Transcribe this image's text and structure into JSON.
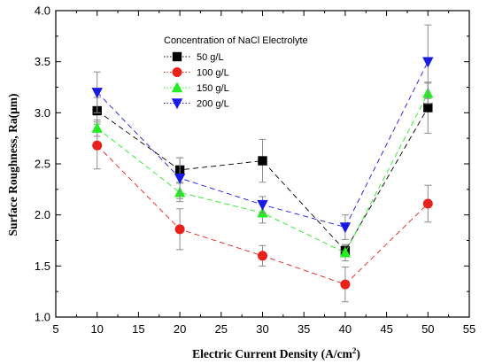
{
  "chart_data": {
    "type": "line",
    "title": "",
    "xlabel": "Electric Current Density (A/cm",
    "xlabel_sup": "2",
    "xlabel_end": ")",
    "ylabel": "Surface Roughness, Ra(μm)",
    "xlim": [
      5,
      55
    ],
    "ylim": [
      1.0,
      4.0
    ],
    "x_ticks": [
      5,
      10,
      15,
      20,
      25,
      30,
      35,
      40,
      45,
      50,
      55
    ],
    "x_tick_labels": [
      "5",
      "10",
      "15",
      "20",
      "25",
      "30",
      "35",
      "40",
      "45",
      "50",
      "55"
    ],
    "y_ticks": [
      1.0,
      1.5,
      2.0,
      2.5,
      3.0,
      3.5,
      4.0
    ],
    "y_tick_labels": [
      "1.0",
      "1.5",
      "2.0",
      "2.5",
      "3.0",
      "3.5",
      "4.0"
    ],
    "grid": false,
    "legend_title": "Concentration of NaCl Electrolyte",
    "legend_position": "top-center",
    "x": [
      10,
      20,
      30,
      40,
      50
    ],
    "series": [
      {
        "name": "50 g/L",
        "color": "#000000",
        "marker": "square",
        "values": [
          3.02,
          2.44,
          2.53,
          1.65,
          3.05
        ],
        "errors": [
          0.13,
          0.12,
          0.21,
          0.05,
          0.25
        ]
      },
      {
        "name": "100 g/L",
        "color": "#e8211b",
        "marker": "circle",
        "values": [
          2.68,
          1.86,
          1.6,
          1.32,
          2.11
        ],
        "errors": [
          0.23,
          0.2,
          0.1,
          0.17,
          0.18
        ]
      },
      {
        "name": "150 g/L",
        "color": "#22ee22",
        "marker": "triangle-up",
        "values": [
          2.85,
          2.22,
          2.02,
          1.63,
          3.19
        ],
        "errors": [
          0.08,
          0.09,
          0.1,
          0.08,
          0.1
        ]
      },
      {
        "name": "200 g/L",
        "color": "#1a1ae6",
        "marker": "triangle-down",
        "values": [
          3.2,
          2.36,
          2.1,
          1.88,
          3.5
        ],
        "errors": [
          0.2,
          0.2,
          0.08,
          0.12,
          0.36
        ]
      }
    ]
  }
}
